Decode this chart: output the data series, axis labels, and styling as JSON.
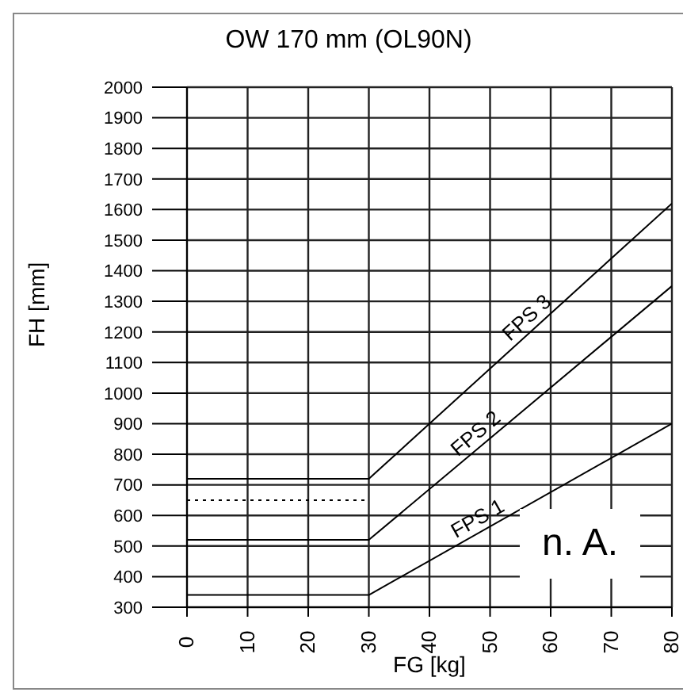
{
  "chart_data": {
    "type": "line",
    "title": "OW 170 mm (OL90N)",
    "xlabel": "FG [kg]",
    "ylabel": "FH [mm]",
    "annotations": [
      "n. A."
    ],
    "xlim": [
      0,
      80
    ],
    "xticks": [
      0,
      10,
      20,
      30,
      40,
      50,
      60,
      70,
      80
    ],
    "ylim": [
      300,
      2000
    ],
    "yticks": [
      300,
      400,
      500,
      600,
      700,
      800,
      900,
      1000,
      1100,
      1200,
      1300,
      1400,
      1500,
      1600,
      1700,
      1800,
      1900,
      2000
    ],
    "grid": true,
    "legend": false,
    "marker": "none",
    "line_style": "solid",
    "series": [
      {
        "name": "FPS 1",
        "color": "#000000",
        "x": [
          0,
          30,
          80
        ],
        "values": [
          340,
          340,
          900
        ]
      },
      {
        "name": "FPS 2",
        "color": "#000000",
        "x": [
          0,
          30,
          80
        ],
        "values": [
          520,
          520,
          1350
        ]
      },
      {
        "name": "FPS 3",
        "color": "#000000",
        "x": [
          0,
          30,
          80
        ],
        "values": [
          720,
          720,
          1620
        ]
      },
      {
        "color": "#000000",
        "x": [
          0,
          30
        ],
        "values": [
          650,
          650
        ],
        "line_style": "dotted"
      }
    ]
  }
}
